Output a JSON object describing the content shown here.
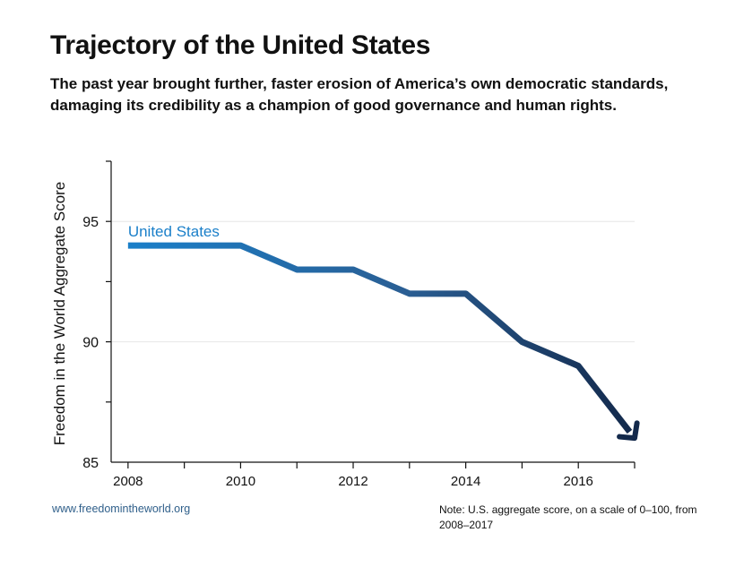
{
  "header": {
    "title": "Trajectory of the United States",
    "subtitle": "The past year brought further, faster erosion of America’s own democratic standards, damaging its credibility as a champion of good governance and human rights."
  },
  "footer": {
    "source": "www.freedomintheworld.org",
    "note": "Note: U.S. aggregate score, on a scale of 0–100, from 2008–2017"
  },
  "chart_data": {
    "type": "line",
    "title": "Trajectory of the United States",
    "ylabel": "Freedom in the World Aggregate Score",
    "xlabel": "",
    "xlim": [
      2007.7,
      2017
    ],
    "ylim": [
      85,
      97.5
    ],
    "x_ticks": [
      2008,
      2010,
      2012,
      2014,
      2016
    ],
    "y_ticks": [
      85,
      90,
      95
    ],
    "grid": true,
    "series": [
      {
        "name": "United States",
        "x": [
          2008,
          2009,
          2010,
          2011,
          2012,
          2013,
          2014,
          2015,
          2016,
          2017
        ],
        "values": [
          94,
          94,
          94,
          93,
          93,
          92,
          92,
          90,
          89,
          86
        ],
        "color_start": "#1a7fc9",
        "color_end": "#13294b"
      }
    ]
  }
}
